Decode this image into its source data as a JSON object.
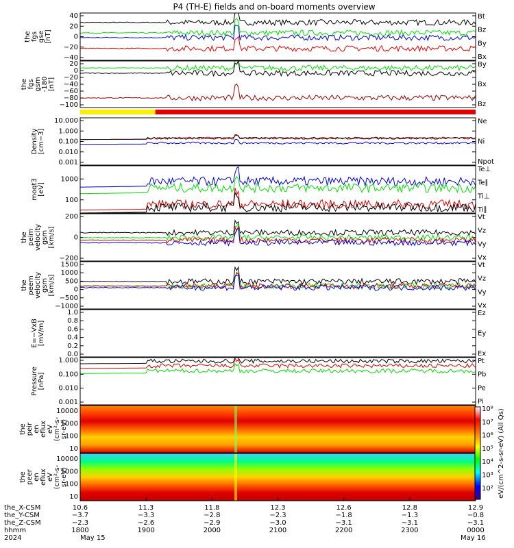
{
  "title": "P4 (TH-E) fields and on-board moments overview",
  "colors": {
    "black": "#000000",
    "red": "#e00000",
    "green": "#00e000",
    "blue": "#0000e0",
    "darkred": "#a00000"
  },
  "chart_data": {
    "type": "line",
    "time_range": [
      "18:00",
      "24:00"
    ],
    "panels": [
      {
        "id": "fgs_gse",
        "ylabel": [
          "the",
          "fgs",
          "gse",
          "[nT]"
        ],
        "ylim": [
          -50,
          50
        ],
        "yticks": [
          "40",
          "20",
          "0",
          "−20",
          "−40"
        ],
        "legend": [
          {
            "text": "Bt",
            "color": "black"
          },
          {
            "text": "Bz",
            "color": "red"
          },
          {
            "text": "By",
            "color": "green"
          },
          {
            "text": "Bx",
            "color": "blue"
          }
        ],
        "series": [
          {
            "name": "Bt",
            "baseline": 30
          },
          {
            "name": "By",
            "baseline": 8
          },
          {
            "name": "Bx",
            "baseline": -2
          },
          {
            "name": "Bz",
            "baseline": -25
          }
        ]
      },
      {
        "id": "fgs_gsm",
        "ylabel": [
          "the",
          "fgs",
          "gsm",
          "-180",
          "[nT]"
        ],
        "ylim": [
          -115,
          30
        ],
        "yticks": [
          "20",
          "0",
          "−20",
          "−40",
          "−60",
          "−80",
          "−100"
        ],
        "legend": [
          {
            "text": "By",
            "color": "green"
          },
          {
            "text": "Bx",
            "color": "black"
          },
          {
            "text": "Bz",
            "color": "darkred"
          }
        ],
        "series": [
          {
            "name": "By",
            "baseline": 8
          },
          {
            "name": "Bx",
            "baseline": -8
          },
          {
            "name": "Bz",
            "baseline": -85
          }
        ]
      },
      {
        "id": "density",
        "ylabel": [
          "Density",
          "[cm−3]"
        ],
        "log": true,
        "ylim": [
          0.0005,
          60000
        ],
        "yticks": [
          "10.000",
          "1.000",
          "0.100",
          "0.010",
          "0.001"
        ],
        "legend": [
          {
            "text": "Ne",
            "color": "red"
          },
          {
            "text": "Ni",
            "color": "black"
          },
          {
            "text": "Npot",
            "color": "blue"
          }
        ],
        "series": [
          {
            "name": "Ne",
            "baseline": 20
          },
          {
            "name": "Ni",
            "baseline": 20
          },
          {
            "name": "Npot",
            "baseline": 3
          }
        ]
      },
      {
        "id": "temperature",
        "ylabel": [
          "moqt3",
          "[eV]"
        ],
        "log": true,
        "ylim": [
          30,
          2000
        ],
        "yticks": [
          "1000",
          "100"
        ],
        "legend": [
          {
            "text": "Te⊥",
            "color": "red"
          },
          {
            "text": "Te∥",
            "color": "black"
          },
          {
            "text": "Ti⊥",
            "color": "blue"
          },
          {
            "text": "Ti∥",
            "color": "green"
          }
        ],
        "series": [
          {
            "name": "Ti⊥",
            "baseline": 500
          },
          {
            "name": "Ti∥",
            "baseline": 280
          },
          {
            "name": "Te⊥",
            "baseline": 65
          },
          {
            "name": "Te∥",
            "baseline": 50
          }
        ]
      },
      {
        "id": "peim",
        "ylabel": [
          "the",
          "peim",
          "velocity",
          "gsm",
          "[km/s]"
        ],
        "ylim": [
          -350,
          400
        ],
        "yticks": [
          "200",
          "0",
          "−200"
        ],
        "legend": [
          {
            "text": "Vt",
            "color": "black"
          },
          {
            "text": "Vz",
            "color": "red"
          },
          {
            "text": "Vy",
            "color": "green"
          },
          {
            "text": "Vx",
            "color": "blue"
          }
        ],
        "series": [
          {
            "name": "Vt",
            "baseline": 100
          },
          {
            "name": "Vy",
            "baseline": 20
          },
          {
            "name": "Vz",
            "baseline": -20
          },
          {
            "name": "Vx",
            "baseline": -60
          }
        ]
      },
      {
        "id": "peem",
        "ylabel": [
          "the",
          "peem",
          "velocity",
          "gsm",
          "[km/s]"
        ],
        "ylim": [
          -1500,
          1600
        ],
        "yticks": [
          "1500",
          "1000",
          "500",
          "0",
          "−500",
          "−1000"
        ],
        "legend": [
          {
            "text": "Vt",
            "color": "black"
          },
          {
            "text": "Vz",
            "color": "red"
          },
          {
            "text": "Vy",
            "color": "green"
          },
          {
            "text": "Vx",
            "color": "blue"
          }
        ],
        "series": [
          {
            "name": "Vt",
            "baseline": 300
          },
          {
            "name": "Vy",
            "baseline": 0
          },
          {
            "name": "Vz",
            "baseline": 0
          },
          {
            "name": "Vx",
            "baseline": -100
          }
        ]
      },
      {
        "id": "efield",
        "ylabel": [
          "E=−VxB",
          "[mV/m]"
        ],
        "ylim": [
          0,
          1
        ],
        "yticks": [
          "1.0",
          "0.8",
          "0.6",
          "0.4",
          "0.2",
          "0.0"
        ],
        "legend": [
          {
            "text": "Ez",
            "color": "red"
          },
          {
            "text": "Ey",
            "color": "green"
          },
          {
            "text": "Ex",
            "color": "blue"
          }
        ],
        "series": []
      },
      {
        "id": "pressure",
        "ylabel": [
          "Pressure",
          "[nPa]"
        ],
        "log": true,
        "ylim": [
          0.0002,
          2
        ],
        "yticks": [
          "1.000",
          "0.100",
          "0.010",
          "0.001"
        ],
        "legend": [
          {
            "text": "Pt",
            "color": "black"
          },
          {
            "text": "Pb",
            "color": "red"
          },
          {
            "text": "Pe",
            "color": "green"
          },
          {
            "text": "Pi",
            "color": "blue"
          }
        ],
        "series": [
          {
            "name": "Pt",
            "baseline": 1
          },
          {
            "name": "Pb",
            "baseline": 0.4
          },
          {
            "name": "Pe",
            "baseline": 0.15
          }
        ]
      }
    ],
    "spectrograms": [
      {
        "id": "peir",
        "ylabel": [
          "the",
          "peir",
          "en",
          "eflux",
          "eV",
          "(cm²-s-",
          "sr-eV)"
        ],
        "yticks": [
          "10000",
          "1000",
          "100",
          "10"
        ]
      },
      {
        "id": "peer",
        "ylabel": [
          "the",
          "peer",
          "en",
          "eflux",
          "eV",
          "(cm²-s-",
          "sr-eV)"
        ],
        "yticks": [
          "10000",
          "1000",
          "100",
          "10"
        ]
      }
    ],
    "colorbar": {
      "label": "eV/(cm^2-s-sr-eV) (All Qs)",
      "ticks": [
        "10⁸",
        "10⁷",
        "10⁶",
        "10⁵",
        "10⁴",
        "10³",
        "10²"
      ]
    },
    "xaxis": {
      "rows": [
        {
          "label": "the_X-CSM",
          "values": [
            "10.6",
            "11.3",
            "11.8",
            "12.3",
            "12.6",
            "12.8",
            "12.9"
          ]
        },
        {
          "label": "the_Y-CSM",
          "values": [
            "−3.7",
            "−3.3",
            "−2.8",
            "−2.3",
            "−1.8",
            "−1.3",
            "−0.8"
          ]
        },
        {
          "label": "the_Z-CSM",
          "values": [
            "−2.3",
            "−2.6",
            "−2.9",
            "−3.0",
            "−3.1",
            "−3.1",
            "−3.1"
          ]
        },
        {
          "label": "hhmm",
          "values": [
            "1800",
            "1900",
            "2000",
            "2100",
            "2200",
            "2300",
            "0000"
          ]
        }
      ],
      "year": "2024",
      "date_start": "May 15",
      "date_end": "May 16"
    }
  }
}
